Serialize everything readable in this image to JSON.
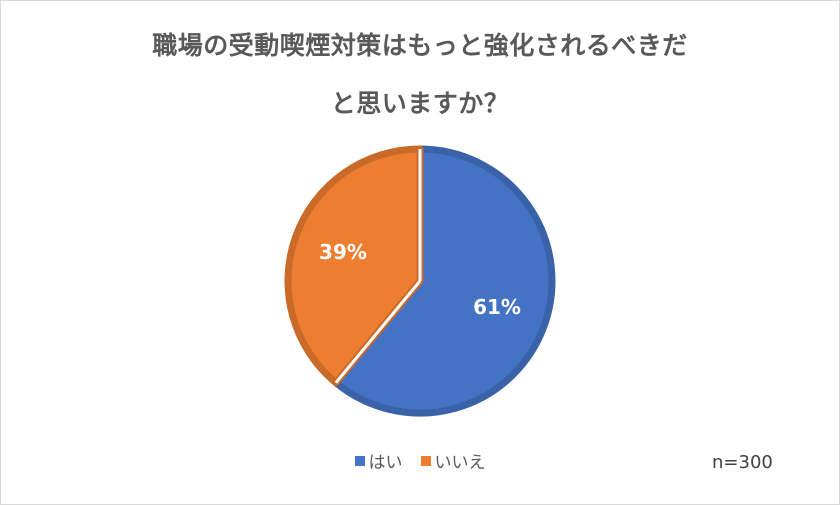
{
  "chart_data": {
    "type": "pie",
    "title_lines": [
      "職場の受動喫煙対策はもっと強化されるべきだ",
      "と思いますか？"
    ],
    "categories": [
      "はい",
      "いいえ"
    ],
    "values": [
      61,
      39
    ],
    "data_labels": [
      "61%",
      "39%"
    ],
    "colors": [
      "#4472C4",
      "#ED7D31"
    ],
    "legend_position": "bottom",
    "note": "n=300"
  }
}
